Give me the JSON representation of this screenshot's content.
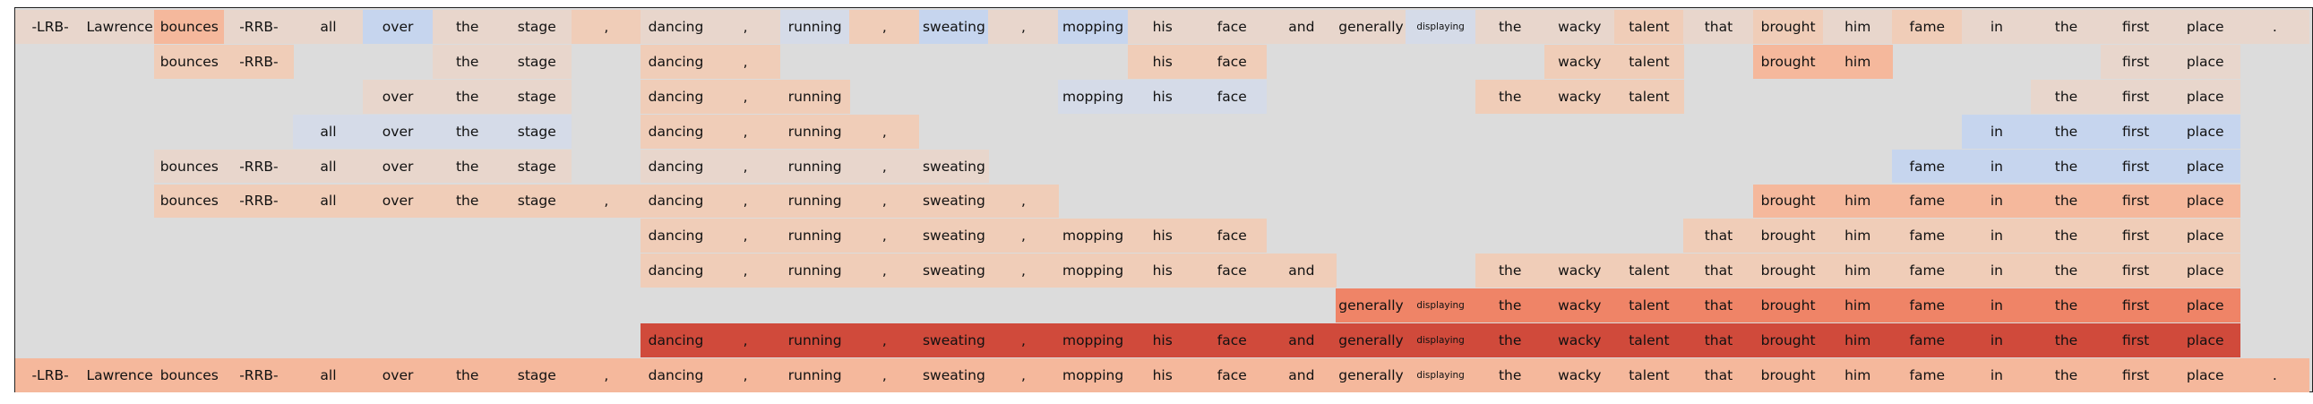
{
  "colors": {
    "background": "#dcdcdc",
    "palette": [
      "#c6d5ee",
      "#d5dbe8",
      "#e8d6cc",
      "#f0cdb8",
      "#f5b89c",
      "#f39c7f",
      "#ef8467",
      "#d04a3b"
    ]
  },
  "tokens": [
    "-LRB-",
    "Lawrence",
    "bounces",
    "-RRB-",
    "all",
    "over",
    "the",
    "stage",
    ",",
    "dancing",
    ",",
    "running",
    ",",
    "sweating",
    ",",
    "mopping",
    "his",
    "face",
    "and",
    "generally",
    "displaying",
    "the",
    "wacky",
    "talent",
    "that",
    "brought",
    "him",
    "fame",
    "in",
    "the",
    "first",
    "place",
    "."
  ],
  "small_tokens": [
    20
  ],
  "rows": [
    {
      "spans": [
        {
          "from": 0,
          "to": 0,
          "c": 2
        },
        {
          "from": 1,
          "to": 1,
          "c": 2
        },
        {
          "from": 2,
          "to": 2,
          "c": 4
        },
        {
          "from": 3,
          "to": 3,
          "c": 2
        },
        {
          "from": 4,
          "to": 4,
          "c": 2
        },
        {
          "from": 5,
          "to": 5,
          "c": 0
        },
        {
          "from": 6,
          "to": 6,
          "c": 2
        },
        {
          "from": 7,
          "to": 7,
          "c": 2
        },
        {
          "from": 8,
          "to": 8,
          "c": 3
        },
        {
          "from": 9,
          "to": 9,
          "c": 2
        },
        {
          "from": 10,
          "to": 10,
          "c": 2
        },
        {
          "from": 11,
          "to": 11,
          "c": 1
        },
        {
          "from": 12,
          "to": 12,
          "c": 3
        },
        {
          "from": 13,
          "to": 13,
          "c": 0
        },
        {
          "from": 14,
          "to": 14,
          "c": 2
        },
        {
          "from": 15,
          "to": 15,
          "c": 0
        },
        {
          "from": 16,
          "to": 16,
          "c": 2
        },
        {
          "from": 17,
          "to": 17,
          "c": 2
        },
        {
          "from": 18,
          "to": 18,
          "c": 2
        },
        {
          "from": 19,
          "to": 19,
          "c": 2
        },
        {
          "from": 20,
          "to": 20,
          "c": 1
        },
        {
          "from": 21,
          "to": 21,
          "c": 2
        },
        {
          "from": 22,
          "to": 22,
          "c": 2
        },
        {
          "from": 23,
          "to": 23,
          "c": 3
        },
        {
          "from": 24,
          "to": 24,
          "c": 2
        },
        {
          "from": 25,
          "to": 25,
          "c": 3
        },
        {
          "from": 26,
          "to": 26,
          "c": 2
        },
        {
          "from": 27,
          "to": 27,
          "c": 3
        },
        {
          "from": 28,
          "to": 28,
          "c": 2
        },
        {
          "from": 29,
          "to": 29,
          "c": 2
        },
        {
          "from": 30,
          "to": 30,
          "c": 2
        },
        {
          "from": 31,
          "to": 31,
          "c": 2
        },
        {
          "from": 32,
          "to": 32,
          "c": 2
        }
      ]
    },
    {
      "spans": [
        {
          "from": 2,
          "to": 3,
          "c": 3
        },
        {
          "from": 6,
          "to": 7,
          "c": 2
        },
        {
          "from": 9,
          "to": 10,
          "c": 3
        },
        {
          "from": 16,
          "to": 17,
          "c": 3
        },
        {
          "from": 22,
          "to": 23,
          "c": 3
        },
        {
          "from": 25,
          "to": 26,
          "c": 4
        },
        {
          "from": 30,
          "to": 31,
          "c": 2
        }
      ]
    },
    {
      "spans": [
        {
          "from": 5,
          "to": 7,
          "c": 2
        },
        {
          "from": 9,
          "to": 11,
          "c": 3
        },
        {
          "from": 15,
          "to": 17,
          "c": 1
        },
        {
          "from": 21,
          "to": 23,
          "c": 3
        },
        {
          "from": 29,
          "to": 31,
          "c": 2
        }
      ]
    },
    {
      "spans": [
        {
          "from": 4,
          "to": 7,
          "c": 1
        },
        {
          "from": 9,
          "to": 12,
          "c": 3
        },
        {
          "from": 28,
          "to": 31,
          "c": 0
        }
      ]
    },
    {
      "spans": [
        {
          "from": 2,
          "to": 7,
          "c": 2
        },
        {
          "from": 9,
          "to": 13,
          "c": 2
        },
        {
          "from": 27,
          "to": 31,
          "c": 0
        }
      ]
    },
    {
      "spans": [
        {
          "from": 2,
          "to": 14,
          "c": 3
        },
        {
          "from": 25,
          "to": 31,
          "c": 4
        }
      ]
    },
    {
      "spans": [
        {
          "from": 9,
          "to": 17,
          "c": 3
        },
        {
          "from": 24,
          "to": 31,
          "c": 3
        }
      ]
    },
    {
      "spans": [
        {
          "from": 9,
          "to": 18,
          "c": 3
        },
        {
          "from": 21,
          "to": 31,
          "c": 3
        }
      ]
    },
    {
      "spans": [
        {
          "from": 19,
          "to": 31,
          "c": 6
        }
      ]
    },
    {
      "spans": [
        {
          "from": 9,
          "to": 31,
          "c": 7
        }
      ]
    },
    {
      "spans": [
        {
          "from": 0,
          "to": 32,
          "c": 4
        }
      ]
    }
  ]
}
